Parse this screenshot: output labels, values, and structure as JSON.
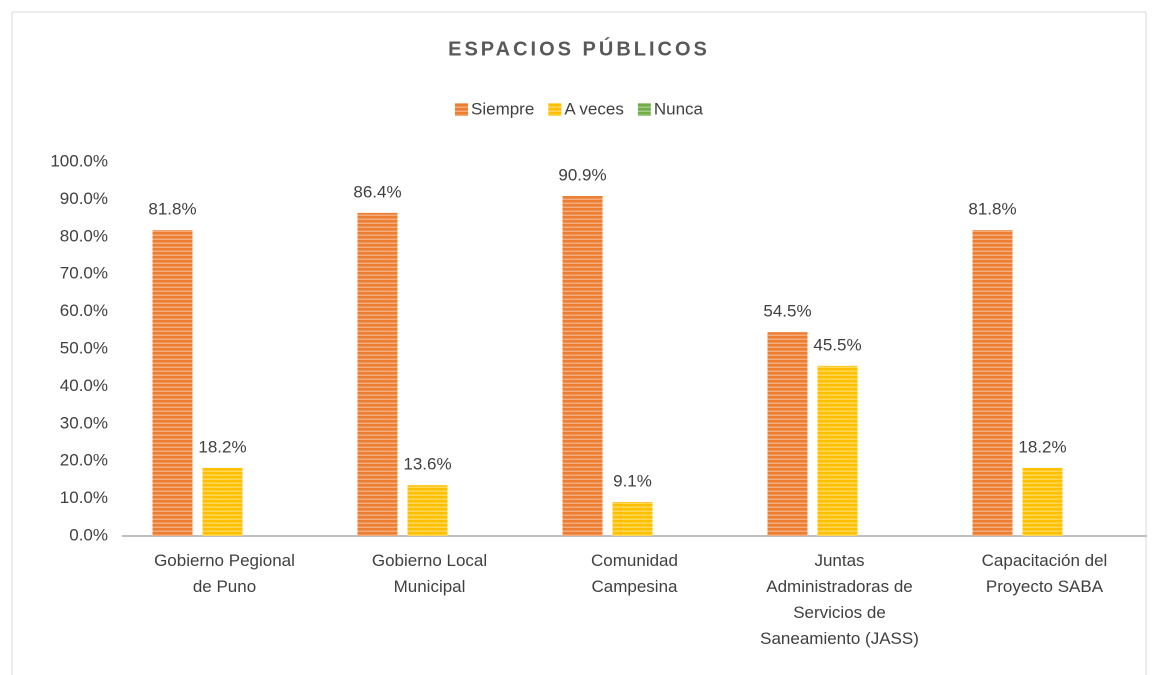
{
  "chart_data": {
    "type": "bar",
    "title": "ESPACIOS PÚBLICOS",
    "categories": [
      "Gobierno Pegional\nde Puno",
      "Gobierno Local\nMunicipal",
      "Comunidad\nCampesina",
      "Juntas\nAdministradoras de\nServicios de\nSaneamiento (JASS)",
      "Capacitación del\nProyecto SABA"
    ],
    "series": [
      {
        "name": "Siempre",
        "color": "#ED7D31",
        "values": [
          81.8,
          86.4,
          90.9,
          54.5,
          81.8
        ],
        "value_labels": [
          "81.8%",
          "86.4%",
          "90.9%",
          "54.5%",
          "81.8%"
        ]
      },
      {
        "name": "A veces",
        "color": "#FFC000",
        "values": [
          18.2,
          13.6,
          9.1,
          45.5,
          18.2
        ],
        "value_labels": [
          "18.2%",
          "13.6%",
          "9.1%",
          "45.5%",
          "18.2%"
        ]
      },
      {
        "name": "Nunca",
        "color": "#70AD47",
        "values": [
          0,
          0,
          0,
          0,
          0
        ]
      }
    ],
    "ylim": [
      0,
      100
    ],
    "yticks": [
      {
        "value": 0,
        "label": "0.0%"
      },
      {
        "value": 10,
        "label": "10.0%"
      },
      {
        "value": 20,
        "label": "20.0%"
      },
      {
        "value": 30,
        "label": "30.0%"
      },
      {
        "value": 40,
        "label": "40.0%"
      },
      {
        "value": 50,
        "label": "50.0%"
      },
      {
        "value": 60,
        "label": "60.0%"
      },
      {
        "value": 70,
        "label": "70.0%"
      },
      {
        "value": 80,
        "label": "80.0%"
      },
      {
        "value": 90,
        "label": "90.0%"
      },
      {
        "value": 100,
        "label": "100.0%"
      }
    ],
    "grid": false,
    "legend": "top"
  }
}
